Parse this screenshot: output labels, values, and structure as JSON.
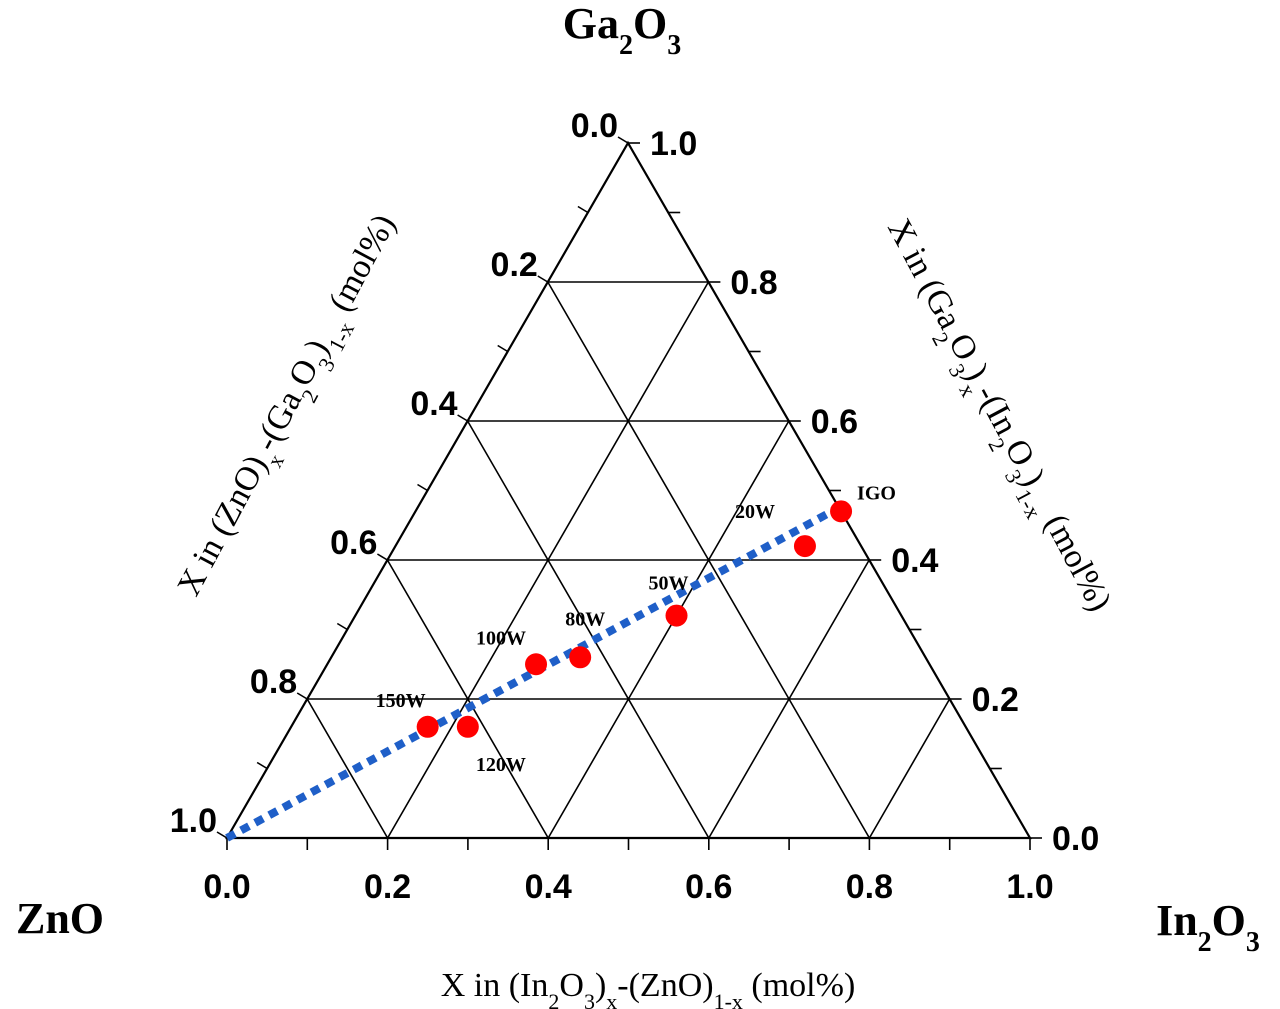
{
  "chart_data": {
    "type": "scatter",
    "subtype": "ternary",
    "corners": {
      "top": {
        "main": "Ga",
        "sub1": "2",
        "mid": "O",
        "sub2": "3"
      },
      "left": {
        "main": "ZnO"
      },
      "right": {
        "main": "In",
        "sub1": "2",
        "mid": "O",
        "sub2": "3"
      }
    },
    "axes": {
      "bottom": {
        "title_parts": [
          "X in (In",
          "2",
          "O",
          "3",
          ")",
          "x",
          "-(ZnO)",
          "1-x",
          " (mol%)"
        ],
        "ticks": [
          "0.0",
          "0.2",
          "0.4",
          "0.6",
          "0.8",
          "1.0"
        ]
      },
      "left": {
        "title_parts": [
          "X in (ZnO)",
          "x",
          "-(Ga",
          "2",
          "O",
          "3",
          ")",
          "1-x",
          " (mol%)"
        ],
        "ticks": [
          "0.0",
          "0.2",
          "0.4",
          "0.6",
          "0.8",
          "1.0"
        ]
      },
      "right": {
        "title_parts": [
          "X in (Ga",
          "2",
          "O",
          "3",
          ")",
          "x",
          "-(In",
          "2",
          "O",
          "3",
          ")",
          "1-x",
          " (mol%)"
        ],
        "ticks": [
          "1.0",
          "0.8",
          "0.6",
          "0.4",
          "0.2",
          "0.0"
        ]
      }
    },
    "grid": true,
    "grid_step": 0.2,
    "minor_tick_step": 0.1,
    "points": [
      {
        "label": "IGO",
        "in2o3": 0.53,
        "ga2o3": 0.47,
        "zno": 0.0
      },
      {
        "label": "20W",
        "in2o3": 0.51,
        "ga2o3": 0.42,
        "zno": 0.07
      },
      {
        "label": "50W",
        "in2o3": 0.4,
        "ga2o3": 0.32,
        "zno": 0.28
      },
      {
        "label": "80W",
        "in2o3": 0.31,
        "ga2o3": 0.26,
        "zno": 0.43
      },
      {
        "label": "100W",
        "in2o3": 0.26,
        "ga2o3": 0.25,
        "zno": 0.49
      },
      {
        "label": "120W",
        "in2o3": 0.22,
        "ga2o3": 0.16,
        "zno": 0.62
      },
      {
        "label": "150W",
        "in2o3": 0.17,
        "ga2o3": 0.16,
        "zno": 0.67
      }
    ],
    "trend_line": {
      "from": {
        "in2o3": 0.0,
        "ga2o3": 0.0,
        "zno": 1.0
      },
      "to": {
        "in2o3": 0.53,
        "ga2o3": 0.48,
        "zno": -0.01
      },
      "style": "dotted"
    },
    "colors": {
      "points": "#ff0000",
      "trend_line": "#1f5fc8",
      "grid": "#000000"
    }
  }
}
